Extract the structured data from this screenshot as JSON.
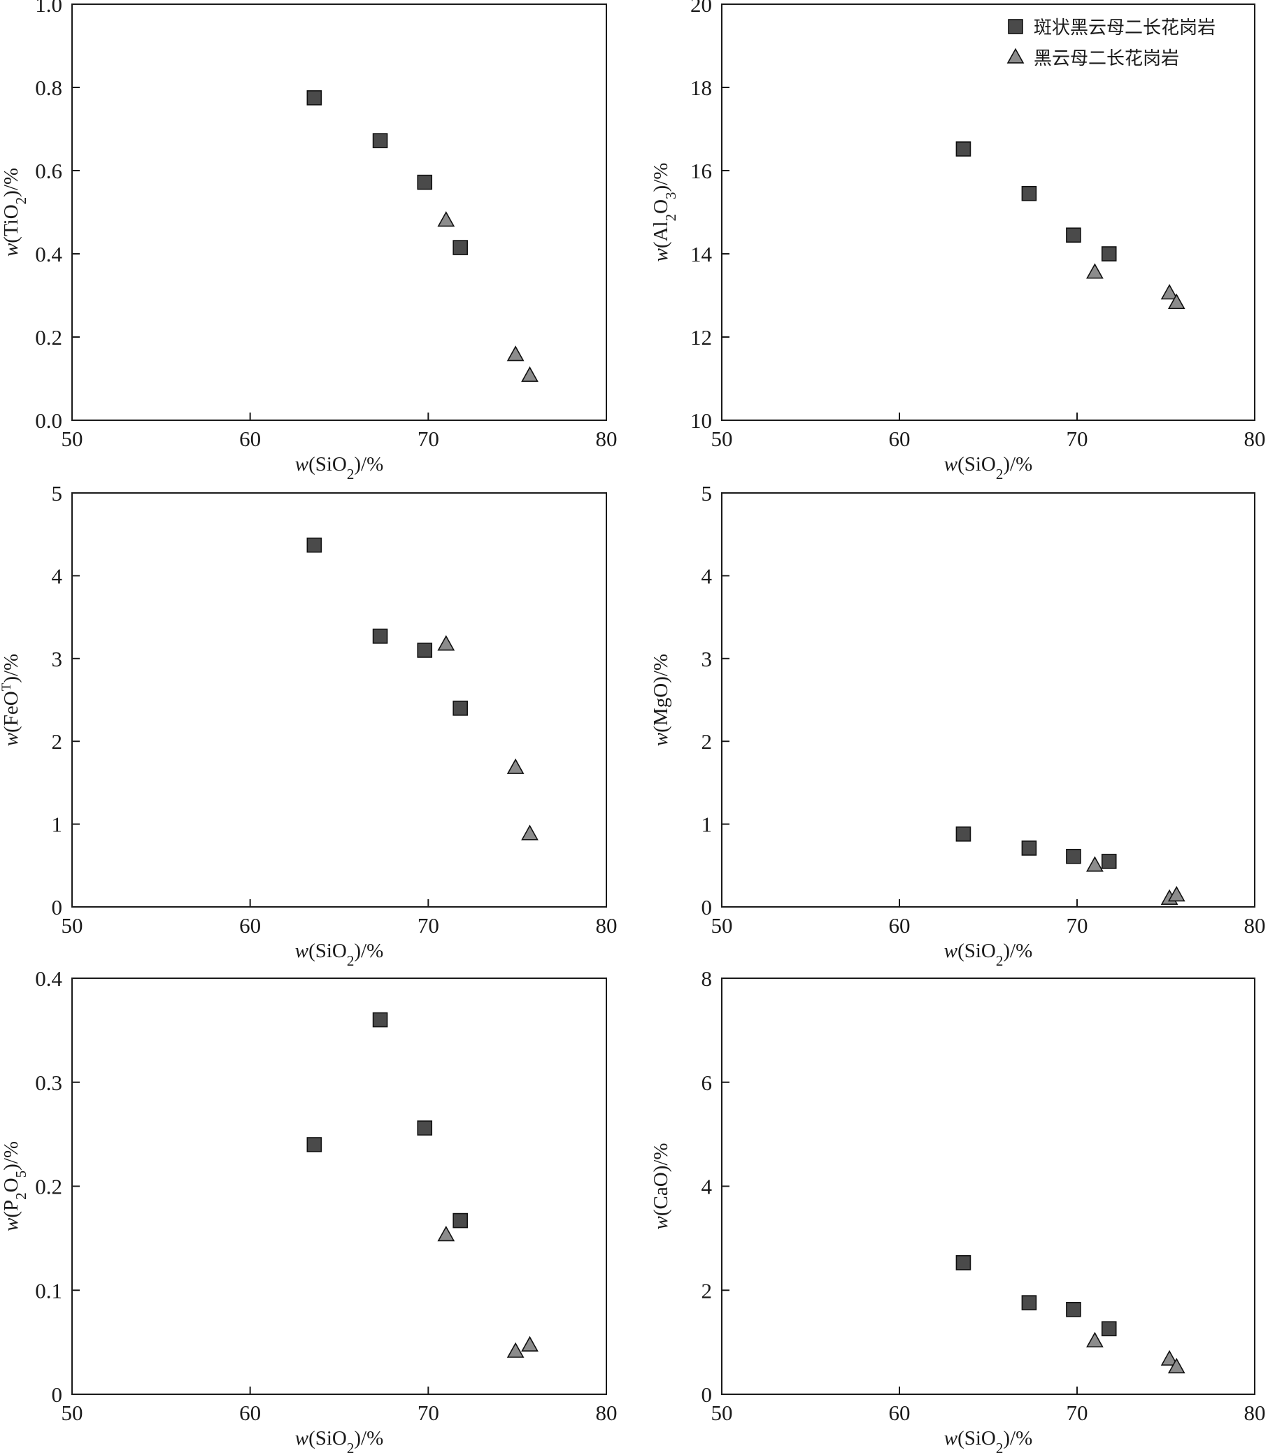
{
  "chart_data": [
    {
      "type": "scatter",
      "xlabel": "w(SiO2)/%",
      "ylabel": "w(TiO2)/%",
      "xlim": [
        50,
        80
      ],
      "ylim": [
        0,
        1.0
      ],
      "xticks": [
        "50",
        "60",
        "70",
        "80"
      ],
      "yticks": [
        "0.0",
        "0.2",
        "0.4",
        "0.6",
        "0.8",
        "1.0"
      ],
      "series": [
        {
          "name": "斑状黑云母二长花岗岩",
          "marker": "square",
          "color": "#4a4a4a",
          "points": [
            [
              63.6,
              0.775
            ],
            [
              67.3,
              0.672
            ],
            [
              69.8,
              0.572
            ],
            [
              71.8,
              0.415
            ]
          ]
        },
        {
          "name": "黑云母二长花岗岩",
          "marker": "triangle",
          "color": "#8c8c8c",
          "points": [
            [
              71.0,
              0.48
            ],
            [
              74.9,
              0.157
            ],
            [
              75.7,
              0.107
            ]
          ]
        }
      ]
    },
    {
      "type": "scatter",
      "xlabel": "w(SiO2)/%",
      "ylabel": "w(Al2O3)/%",
      "xlim": [
        50,
        80
      ],
      "ylim": [
        10,
        20
      ],
      "xticks": [
        "50",
        "60",
        "70",
        "80"
      ],
      "yticks": [
        "10",
        "12",
        "14",
        "16",
        "18",
        "20"
      ],
      "series": [
        {
          "name": "斑状黑云母二长花岗岩",
          "marker": "square",
          "color": "#4a4a4a",
          "points": [
            [
              63.6,
              16.52
            ],
            [
              67.3,
              15.45
            ],
            [
              69.8,
              14.45
            ],
            [
              71.8,
              14.0
            ]
          ]
        },
        {
          "name": "黑云母二长花岗岩",
          "marker": "triangle",
          "color": "#8c8c8c",
          "points": [
            [
              71.0,
              13.55
            ],
            [
              75.2,
              13.05
            ],
            [
              75.6,
              12.82
            ]
          ]
        }
      ]
    },
    {
      "type": "scatter",
      "xlabel": "w(SiO2)/%",
      "ylabel": "w(FeOT)/%",
      "xlim": [
        50,
        80
      ],
      "ylim": [
        0,
        5
      ],
      "xticks": [
        "50",
        "60",
        "70",
        "80"
      ],
      "yticks": [
        "0",
        "1",
        "2",
        "3",
        "4",
        "5"
      ],
      "series": [
        {
          "name": "斑状黑云母二长花岗岩",
          "marker": "square",
          "color": "#4a4a4a",
          "points": [
            [
              63.6,
              4.37
            ],
            [
              67.3,
              3.27
            ],
            [
              69.8,
              3.1
            ],
            [
              71.8,
              2.4
            ]
          ]
        },
        {
          "name": "黑云母二长花岗岩",
          "marker": "triangle",
          "color": "#8c8c8c",
          "points": [
            [
              71.0,
              3.17
            ],
            [
              74.9,
              1.68
            ],
            [
              75.7,
              0.88
            ]
          ]
        }
      ]
    },
    {
      "type": "scatter",
      "xlabel": "w(SiO2)/%",
      "ylabel": "w(MgO)/%",
      "xlim": [
        50,
        80
      ],
      "ylim": [
        0,
        5
      ],
      "xticks": [
        "50",
        "60",
        "70",
        "80"
      ],
      "yticks": [
        "0",
        "1",
        "2",
        "3",
        "4",
        "5"
      ],
      "series": [
        {
          "name": "斑状黑云母二长花岗岩",
          "marker": "square",
          "color": "#4a4a4a",
          "points": [
            [
              63.6,
              0.88
            ],
            [
              67.3,
              0.71
            ],
            [
              69.8,
              0.61
            ],
            [
              71.8,
              0.55
            ]
          ]
        },
        {
          "name": "黑云母二长花岗岩",
          "marker": "triangle",
          "color": "#8c8c8c",
          "points": [
            [
              71.0,
              0.5
            ],
            [
              75.2,
              0.1
            ],
            [
              75.6,
              0.14
            ]
          ]
        }
      ]
    },
    {
      "type": "scatter",
      "xlabel": "w(SiO2)/%",
      "ylabel": "w(P2O5)/%",
      "xlim": [
        50,
        80
      ],
      "ylim": [
        0,
        0.4
      ],
      "xticks": [
        "50",
        "60",
        "70",
        "80"
      ],
      "yticks": [
        "0",
        "0.1",
        "0.2",
        "0.3",
        "0.4"
      ],
      "series": [
        {
          "name": "斑状黑云母二长花岗岩",
          "marker": "square",
          "color": "#4a4a4a",
          "points": [
            [
              63.6,
              0.24
            ],
            [
              67.3,
              0.36
            ],
            [
              69.8,
              0.256
            ],
            [
              71.8,
              0.167
            ]
          ]
        },
        {
          "name": "黑云母二长花岗岩",
          "marker": "triangle",
          "color": "#8c8c8c",
          "points": [
            [
              71.0,
              0.153
            ],
            [
              74.9,
              0.041
            ],
            [
              75.7,
              0.047
            ]
          ]
        }
      ]
    },
    {
      "type": "scatter",
      "xlabel": "w(SiO2)/%",
      "ylabel": "w(CaO)/%",
      "xlim": [
        50,
        80
      ],
      "ylim": [
        0,
        8
      ],
      "xticks": [
        "50",
        "60",
        "70",
        "80"
      ],
      "yticks": [
        "0",
        "2",
        "4",
        "6",
        "8"
      ],
      "series": [
        {
          "name": "斑状黑云母二长花岗岩",
          "marker": "square",
          "color": "#4a4a4a",
          "points": [
            [
              63.6,
              2.53
            ],
            [
              67.3,
              1.76
            ],
            [
              69.8,
              1.63
            ],
            [
              71.8,
              1.26
            ]
          ]
        },
        {
          "name": "黑云母二长花岗岩",
          "marker": "triangle",
          "color": "#8c8c8c",
          "points": [
            [
              71.0,
              1.02
            ],
            [
              75.2,
              0.67
            ],
            [
              75.6,
              0.52
            ]
          ]
        }
      ]
    }
  ],
  "legend": {
    "placement": "top-right of top-right panel",
    "entries": [
      {
        "label": "斑状黑云母二长花岗岩",
        "marker": "square",
        "color": "#4a4a4a"
      },
      {
        "label": "黑云母二长花岗岩",
        "marker": "triangle",
        "color": "#8c8c8c"
      }
    ]
  }
}
